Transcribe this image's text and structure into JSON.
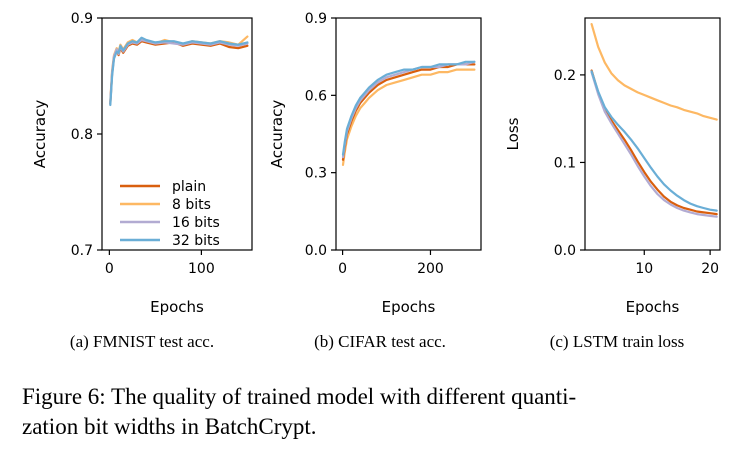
{
  "caption": {
    "line1": "Figure 6: The quality of trained model with different quanti-",
    "line2": "zation bit widths in BatchCrypt."
  },
  "colors": {
    "plain": "#d95f0e",
    "8 bits": "#fdb863",
    "16 bits": "#b2abd2",
    "32 bits": "#6aaed6"
  },
  "chart_data": [
    {
      "type": "line",
      "subcaption": "(a) FMNIST test acc.",
      "xlabel": "Epochs",
      "ylabel": "Accuracy",
      "xlim": [
        -8,
        155
      ],
      "ylim": [
        0.7,
        0.9
      ],
      "xticks": [
        0,
        100
      ],
      "yticks": [
        0.7,
        0.8,
        0.9
      ],
      "yticklabels": [
        "0.7",
        "0.8",
        "0.9"
      ],
      "legend_position": "lower-left",
      "x": [
        1,
        3,
        5,
        8,
        10,
        12,
        15,
        20,
        25,
        30,
        35,
        40,
        50,
        60,
        70,
        80,
        90,
        100,
        110,
        120,
        130,
        140,
        150
      ],
      "series": [
        {
          "name": "plain",
          "values": [
            0.826,
            0.852,
            0.866,
            0.872,
            0.868,
            0.874,
            0.87,
            0.876,
            0.878,
            0.877,
            0.88,
            0.879,
            0.877,
            0.878,
            0.879,
            0.876,
            0.878,
            0.877,
            0.876,
            0.878,
            0.875,
            0.874,
            0.876
          ]
        },
        {
          "name": "8 bits",
          "values": [
            0.828,
            0.855,
            0.868,
            0.874,
            0.871,
            0.877,
            0.873,
            0.879,
            0.881,
            0.879,
            0.882,
            0.88,
            0.878,
            0.881,
            0.879,
            0.877,
            0.88,
            0.879,
            0.878,
            0.88,
            0.879,
            0.877,
            0.884
          ]
        },
        {
          "name": "16 bits",
          "values": [
            0.827,
            0.853,
            0.867,
            0.873,
            0.869,
            0.875,
            0.871,
            0.877,
            0.879,
            0.878,
            0.881,
            0.88,
            0.878,
            0.879,
            0.878,
            0.877,
            0.879,
            0.878,
            0.877,
            0.879,
            0.877,
            0.876,
            0.878
          ]
        },
        {
          "name": "32 bits",
          "values": [
            0.825,
            0.85,
            0.865,
            0.871,
            0.87,
            0.876,
            0.872,
            0.878,
            0.88,
            0.879,
            0.883,
            0.881,
            0.879,
            0.88,
            0.88,
            0.878,
            0.88,
            0.879,
            0.878,
            0.88,
            0.878,
            0.877,
            0.879
          ]
        }
      ]
    },
    {
      "type": "line",
      "subcaption": "(b) CIFAR test acc.",
      "xlabel": "Epochs",
      "ylabel": "Accuracy",
      "xlim": [
        -15,
        315
      ],
      "ylim": [
        0.0,
        0.9
      ],
      "xticks": [
        0,
        200
      ],
      "yticks": [
        0.0,
        0.3,
        0.6,
        0.9
      ],
      "yticklabels": [
        "0.0",
        "0.3",
        "0.6",
        "0.9"
      ],
      "x": [
        1,
        5,
        10,
        20,
        30,
        40,
        50,
        60,
        80,
        100,
        120,
        140,
        160,
        180,
        200,
        220,
        240,
        260,
        280,
        300
      ],
      "series": [
        {
          "name": "plain",
          "values": [
            0.35,
            0.4,
            0.45,
            0.5,
            0.54,
            0.57,
            0.59,
            0.61,
            0.64,
            0.66,
            0.67,
            0.68,
            0.69,
            0.7,
            0.7,
            0.71,
            0.71,
            0.72,
            0.72,
            0.72
          ]
        },
        {
          "name": "8 bits",
          "values": [
            0.33,
            0.38,
            0.43,
            0.48,
            0.52,
            0.55,
            0.57,
            0.59,
            0.62,
            0.64,
            0.65,
            0.66,
            0.67,
            0.68,
            0.68,
            0.69,
            0.69,
            0.7,
            0.7,
            0.7
          ]
        },
        {
          "name": "16 bits",
          "values": [
            0.36,
            0.41,
            0.46,
            0.51,
            0.55,
            0.58,
            0.6,
            0.62,
            0.65,
            0.67,
            0.68,
            0.69,
            0.7,
            0.71,
            0.71,
            0.71,
            0.72,
            0.72,
            0.72,
            0.73
          ]
        },
        {
          "name": "32 bits",
          "values": [
            0.37,
            0.42,
            0.47,
            0.52,
            0.56,
            0.59,
            0.61,
            0.63,
            0.66,
            0.68,
            0.69,
            0.7,
            0.7,
            0.71,
            0.71,
            0.72,
            0.72,
            0.72,
            0.73,
            0.73
          ]
        }
      ]
    },
    {
      "type": "line",
      "subcaption": "(c) LSTM train loss",
      "xlabel": "Epochs",
      "ylabel": "Loss",
      "xlim": [
        1,
        21.5
      ],
      "ylim": [
        0.0,
        0.265
      ],
      "xticks": [
        10,
        20
      ],
      "yticks": [
        0.0,
        0.1,
        0.2
      ],
      "yticklabels": [
        "0.0",
        "0.1",
        "0.2"
      ],
      "x": [
        2,
        3,
        4,
        5,
        6,
        7,
        8,
        9,
        10,
        11,
        12,
        13,
        14,
        15,
        16,
        17,
        18,
        19,
        20,
        21
      ],
      "series": [
        {
          "name": "plain",
          "values": [
            0.205,
            0.18,
            0.16,
            0.148,
            0.137,
            0.126,
            0.114,
            0.101,
            0.089,
            0.078,
            0.069,
            0.061,
            0.055,
            0.051,
            0.048,
            0.046,
            0.044,
            0.043,
            0.042,
            0.041
          ]
        },
        {
          "name": "8 bits",
          "values": [
            0.258,
            0.232,
            0.214,
            0.202,
            0.194,
            0.188,
            0.184,
            0.18,
            0.177,
            0.174,
            0.171,
            0.168,
            0.165,
            0.163,
            0.16,
            0.158,
            0.156,
            0.153,
            0.151,
            0.149
          ]
        },
        {
          "name": "16 bits",
          "values": [
            0.203,
            0.178,
            0.158,
            0.145,
            0.133,
            0.121,
            0.109,
            0.096,
            0.084,
            0.073,
            0.064,
            0.057,
            0.052,
            0.048,
            0.045,
            0.043,
            0.041,
            0.04,
            0.039,
            0.038
          ]
        },
        {
          "name": "32 bits",
          "values": [
            0.204,
            0.181,
            0.163,
            0.152,
            0.143,
            0.135,
            0.126,
            0.116,
            0.105,
            0.094,
            0.084,
            0.075,
            0.068,
            0.062,
            0.057,
            0.053,
            0.05,
            0.048,
            0.046,
            0.045
          ]
        }
      ]
    }
  ]
}
